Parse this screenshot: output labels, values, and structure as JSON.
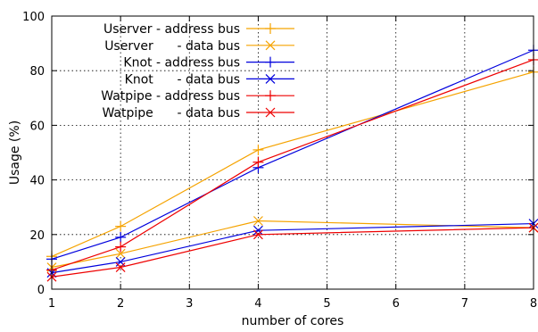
{
  "chart_data": {
    "type": "line",
    "title": "",
    "xlabel": "number of cores",
    "ylabel": "Usage (%)",
    "xlim": [
      1,
      8
    ],
    "ylim": [
      0,
      100
    ],
    "x_ticks": [
      1,
      2,
      3,
      4,
      5,
      6,
      7,
      8
    ],
    "y_ticks": [
      0,
      20,
      40,
      60,
      80,
      100
    ],
    "grid": true,
    "legend_position": "top-left",
    "x": [
      1,
      2,
      4,
      8
    ],
    "series": [
      {
        "name": "Userver - address bus",
        "values": [
          12,
          23,
          51,
          79.5
        ],
        "color": "#f5a300",
        "marker": "plus"
      },
      {
        "name": "Userver      - data bus",
        "values": [
          8,
          13,
          25,
          22.5
        ],
        "color": "#f5a300",
        "marker": "cross"
      },
      {
        "name": "Knot - address bus",
        "values": [
          11,
          19,
          44.5,
          87.5
        ],
        "color": "#0000dd",
        "marker": "plus"
      },
      {
        "name": "Knot      - data bus",
        "values": [
          6,
          10,
          21.5,
          24
        ],
        "color": "#0000dd",
        "marker": "cross"
      },
      {
        "name": "Watpipe - address bus",
        "values": [
          7,
          15.5,
          46.5,
          84
        ],
        "color": "#ee0000",
        "marker": "plus"
      },
      {
        "name": "Watpipe      - data bus",
        "values": [
          4.5,
          8,
          20,
          22.5
        ],
        "color": "#ee0000",
        "marker": "cross"
      }
    ]
  }
}
